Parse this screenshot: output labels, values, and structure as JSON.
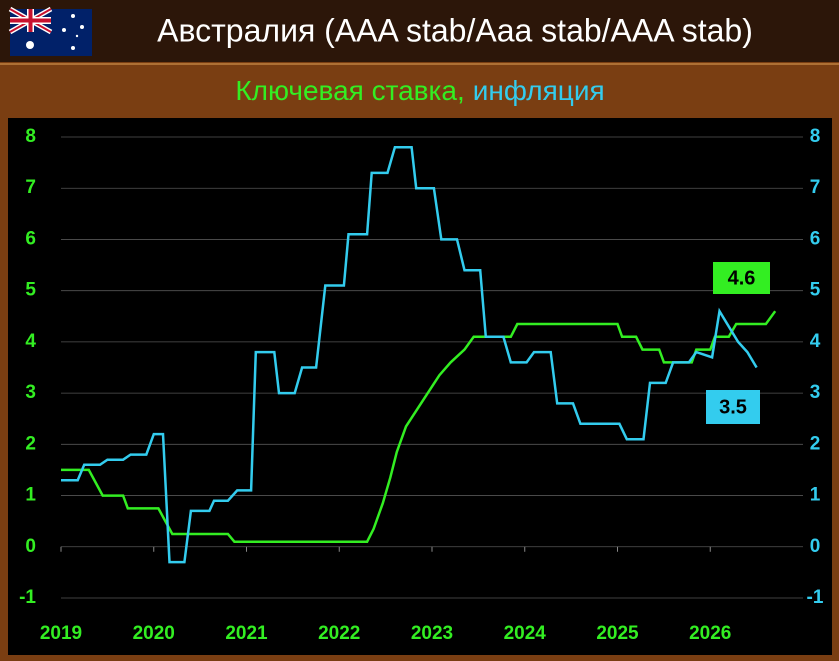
{
  "chart_data": {
    "type": "line",
    "title": "Австралия (AAA stab/Aaa stab/AAA stab)",
    "subtitle_separator": ",",
    "xlim": [
      2019,
      2027
    ],
    "xticks": [
      2019,
      2020,
      2021,
      2022,
      2023,
      2024,
      2025,
      2026
    ],
    "ylim": [
      -1,
      8
    ],
    "yticks": [
      -1,
      0,
      1,
      2,
      3,
      4,
      5,
      6,
      7,
      8
    ],
    "y2lim": [
      -1,
      8
    ],
    "y2ticks": [
      -1,
      0,
      1,
      2,
      3,
      4,
      5,
      6,
      7,
      8
    ],
    "grid": true,
    "series": [
      {
        "name": "Ключевая ставка",
        "color": "#33ee22",
        "end_label": 4.6,
        "x": [
          2019.0,
          2019.3,
          2019.45,
          2019.67,
          2019.72,
          2020.05,
          2020.2,
          2020.8,
          2020.87,
          2022.3,
          2022.37,
          2022.47,
          2022.55,
          2022.62,
          2022.72,
          2022.9,
          2023.08,
          2023.2,
          2023.35,
          2023.45,
          2023.85,
          2023.92,
          2025.0,
          2025.05,
          2025.2,
          2025.27,
          2025.45,
          2025.5,
          2025.8,
          2025.85,
          2026.0,
          2026.05,
          2026.2,
          2026.28,
          2026.6,
          2026.7
        ],
        "values": [
          1.5,
          1.5,
          1.0,
          1.0,
          0.75,
          0.75,
          0.25,
          0.25,
          0.1,
          0.1,
          0.35,
          0.85,
          1.35,
          1.85,
          2.35,
          2.85,
          3.35,
          3.6,
          3.85,
          4.1,
          4.1,
          4.35,
          4.35,
          4.1,
          4.1,
          3.85,
          3.85,
          3.6,
          3.6,
          3.85,
          3.85,
          4.1,
          4.1,
          4.35,
          4.35,
          4.6
        ]
      },
      {
        "name": "инфляция",
        "color": "#33ccee",
        "axis": "y2",
        "end_label": 3.5,
        "x": [
          2019.0,
          2019.18,
          2019.25,
          2019.42,
          2019.5,
          2019.67,
          2019.75,
          2019.92,
          2020.0,
          2020.1,
          2020.17,
          2020.33,
          2020.4,
          2020.6,
          2020.65,
          2020.8,
          2020.9,
          2021.05,
          2021.1,
          2021.3,
          2021.35,
          2021.52,
          2021.6,
          2021.75,
          2021.85,
          2022.05,
          2022.1,
          2022.3,
          2022.35,
          2022.52,
          2022.6,
          2022.78,
          2022.83,
          2023.02,
          2023.1,
          2023.27,
          2023.35,
          2023.52,
          2023.58,
          2023.77,
          2023.85,
          2024.02,
          2024.1,
          2024.28,
          2024.35,
          2024.52,
          2024.6,
          2025.02,
          2025.1,
          2025.28,
          2025.35,
          2025.52,
          2025.6,
          2025.77,
          2025.85,
          2026.02,
          2026.1,
          2026.3,
          2026.4,
          2026.5
        ],
        "values": [
          1.3,
          1.3,
          1.6,
          1.6,
          1.7,
          1.7,
          1.8,
          1.8,
          2.2,
          2.2,
          -0.3,
          -0.3,
          0.7,
          0.7,
          0.9,
          0.9,
          1.1,
          1.1,
          3.8,
          3.8,
          3.0,
          3.0,
          3.5,
          3.5,
          5.1,
          5.1,
          6.1,
          6.1,
          7.3,
          7.3,
          7.8,
          7.8,
          7.0,
          7.0,
          6.0,
          6.0,
          5.4,
          5.4,
          4.1,
          4.1,
          3.6,
          3.6,
          3.8,
          3.8,
          2.8,
          2.8,
          2.4,
          2.4,
          2.1,
          2.1,
          3.2,
          3.2,
          3.6,
          3.6,
          3.8,
          3.7,
          4.6,
          4.0,
          3.8,
          3.5
        ]
      }
    ]
  }
}
